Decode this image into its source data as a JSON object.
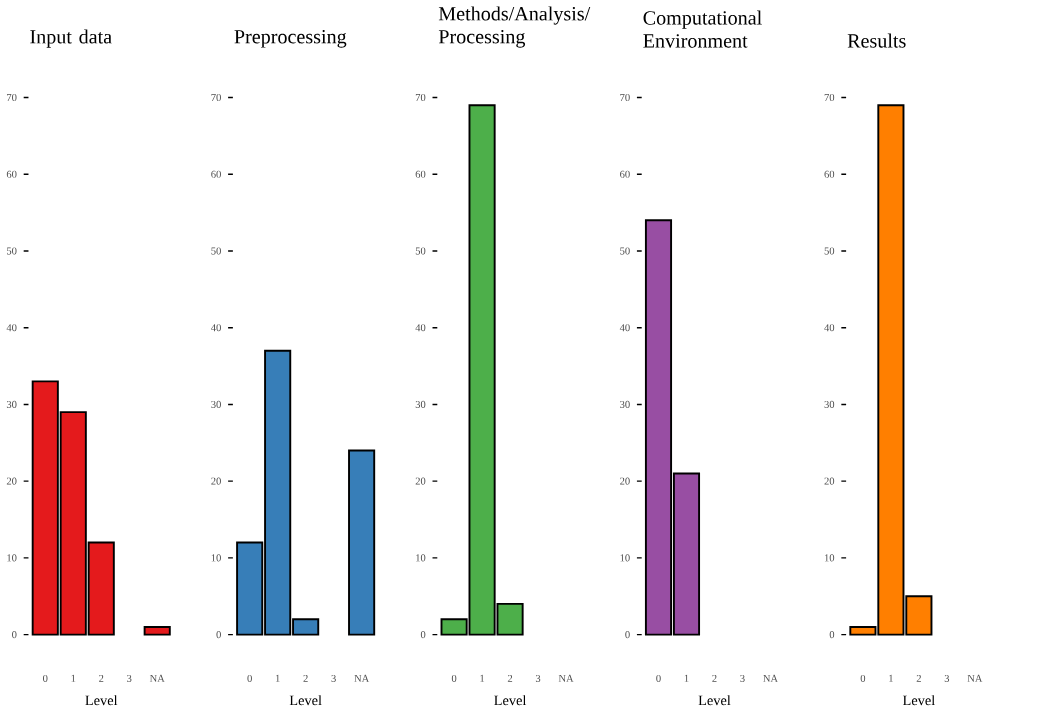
{
  "chart_data": [
    {
      "type": "bar",
      "title": "Input data",
      "xlabel": "Level",
      "categories": [
        "0",
        "1",
        "2",
        "3",
        "NA"
      ],
      "values": [
        33,
        29,
        12,
        null,
        1
      ],
      "color": "#e41a1c",
      "ylim": [
        0,
        70
      ],
      "yticks": [
        0,
        10,
        20,
        30,
        40,
        50,
        60,
        70
      ]
    },
    {
      "type": "bar",
      "title": "Preprocessing",
      "xlabel": "Level",
      "categories": [
        "0",
        "1",
        "2",
        "3",
        "NA"
      ],
      "values": [
        12,
        37,
        2,
        null,
        24
      ],
      "color": "#377eb8",
      "ylim": [
        0,
        70
      ],
      "yticks": [
        0,
        10,
        20,
        30,
        40,
        50,
        60,
        70
      ]
    },
    {
      "type": "bar",
      "title": "Methods/Analysis/ Processing",
      "xlabel": "Level",
      "categories": [
        "0",
        "1",
        "2",
        "3",
        "NA"
      ],
      "values": [
        2,
        69,
        4,
        null,
        null
      ],
      "color": "#4daf4a",
      "ylim": [
        0,
        70
      ],
      "yticks": [
        0,
        10,
        20,
        30,
        40,
        50,
        60,
        70
      ]
    },
    {
      "type": "bar",
      "title": "Computational Environment",
      "xlabel": "Level",
      "categories": [
        "0",
        "1",
        "2",
        "3",
        "NA"
      ],
      "values": [
        54,
        21,
        null,
        null,
        null
      ],
      "color": "#984ea3",
      "ylim": [
        0,
        70
      ],
      "yticks": [
        0,
        10,
        20,
        30,
        40,
        50,
        60,
        70
      ]
    },
    {
      "type": "bar",
      "title": "Results",
      "xlabel": "Level",
      "categories": [
        "0",
        "1",
        "2",
        "3",
        "NA"
      ],
      "values": [
        1,
        69,
        5,
        null,
        null
      ],
      "color": "#ff7f00",
      "ylim": [
        0,
        70
      ],
      "yticks": [
        0,
        10,
        20,
        30,
        40,
        50,
        60,
        70
      ]
    }
  ]
}
